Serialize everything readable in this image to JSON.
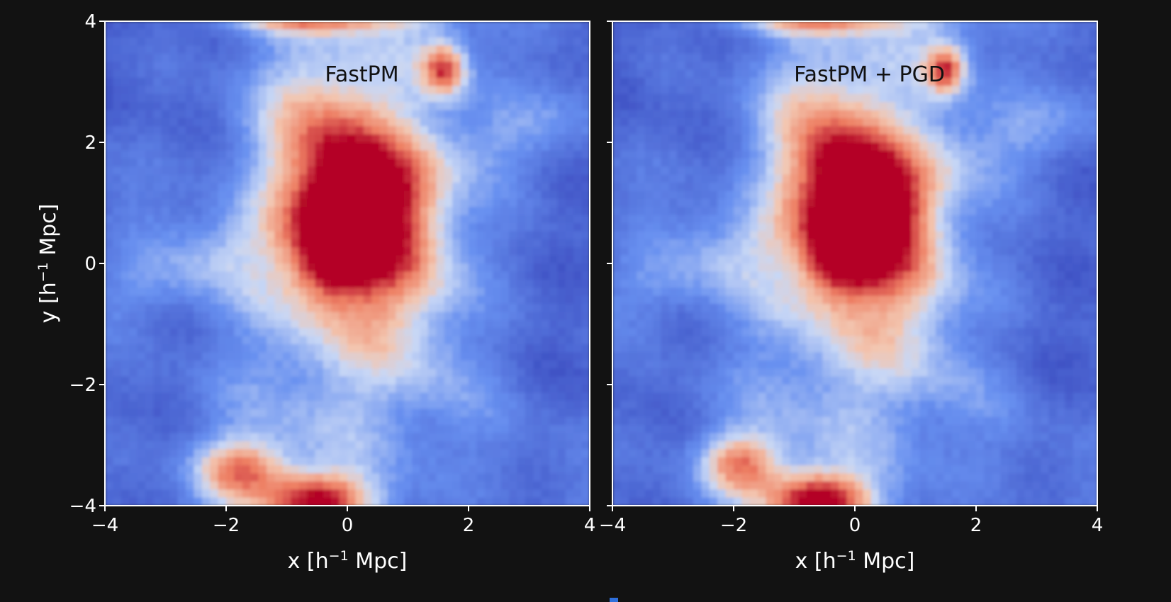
{
  "chart_data": {
    "type": "heatmap",
    "panels": [
      {
        "title": "FastPM",
        "xlabel_main": "x [h",
        "xlabel_sup": "−1",
        "xlabel_end": " Mpc]",
        "ylabel_main": "y [h",
        "ylabel_sup": "−1",
        "ylabel_end": " Mpc]",
        "show_ylabel": true,
        "xlim": [
          -4,
          4
        ],
        "ylim": [
          -4,
          4
        ],
        "xticks": [
          -4,
          -2,
          0,
          2,
          4
        ],
        "yticks": [
          -4,
          -2,
          0,
          2,
          4
        ],
        "xtick_labels": [
          "−4",
          "−2",
          "0",
          "2",
          "4"
        ],
        "ytick_labels": [
          "−4",
          "−2",
          "0",
          "2",
          "4"
        ],
        "colormap": "coolwarm",
        "blobs": [
          {
            "x": 0.2,
            "y": 1.0,
            "sx": 0.75,
            "sy": 1.35,
            "amp": 1.0,
            "rot": -0.5
          },
          {
            "x": -0.3,
            "y": 0.1,
            "sx": 0.45,
            "sy": 0.5,
            "amp": 0.6,
            "rot": 0
          },
          {
            "x": 1.6,
            "y": 3.2,
            "sx": 0.25,
            "sy": 0.3,
            "amp": 0.7,
            "rot": 0
          },
          {
            "x": -1.8,
            "y": -3.4,
            "sx": 0.5,
            "sy": 0.35,
            "amp": 0.6,
            "rot": 0
          },
          {
            "x": -0.5,
            "y": -3.9,
            "sx": 0.6,
            "sy": 0.3,
            "amp": 0.75,
            "rot": 0
          },
          {
            "x": -0.6,
            "y": 4.0,
            "sx": 1.0,
            "sy": 0.15,
            "amp": 0.5,
            "rot": 0
          }
        ]
      },
      {
        "title": "FastPM + PGD",
        "xlabel_main": "x [h",
        "xlabel_sup": "−1",
        "xlabel_end": " Mpc]",
        "show_ylabel": false,
        "xlim": [
          -4,
          4
        ],
        "ylim": [
          -4,
          4
        ],
        "xticks": [
          -4,
          -2,
          0,
          2,
          4
        ],
        "yticks": [
          -4,
          -2,
          0,
          2,
          4
        ],
        "xtick_labels": [
          "−4",
          "−2",
          "0",
          "2",
          "4"
        ],
        "ytick_labels": [],
        "colormap": "coolwarm",
        "blobs": [
          {
            "x": 0.1,
            "y": 1.0,
            "sx": 0.7,
            "sy": 1.3,
            "amp": 1.0,
            "rot": -0.5
          },
          {
            "x": 0.15,
            "y": 1.1,
            "sx": 0.3,
            "sy": 0.45,
            "amp": 0.55,
            "rot": -0.5
          },
          {
            "x": -0.3,
            "y": 0.1,
            "sx": 0.4,
            "sy": 0.45,
            "amp": 0.6,
            "rot": 0
          },
          {
            "x": 1.5,
            "y": 3.2,
            "sx": 0.22,
            "sy": 0.28,
            "amp": 0.7,
            "rot": 0
          },
          {
            "x": -1.9,
            "y": -3.3,
            "sx": 0.45,
            "sy": 0.35,
            "amp": 0.6,
            "rot": 0
          },
          {
            "x": -0.6,
            "y": -3.9,
            "sx": 0.55,
            "sy": 0.3,
            "amp": 0.85,
            "rot": 0
          },
          {
            "x": -0.6,
            "y": 4.0,
            "sx": 1.0,
            "sy": 0.15,
            "amp": 0.5,
            "rot": 0
          }
        ]
      }
    ]
  }
}
